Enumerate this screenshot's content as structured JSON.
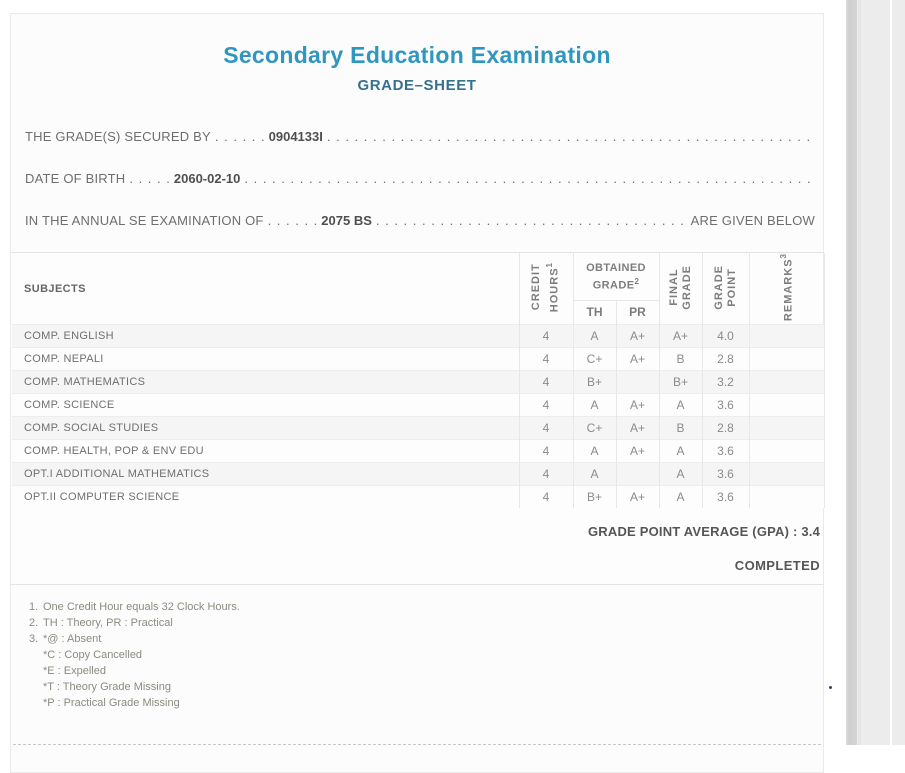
{
  "page": {
    "title": "Secondary Education Examination",
    "subtitle": "GRADE–SHEET"
  },
  "info": {
    "line1": {
      "label": "THE GRADE(S) SECURED BY",
      "value": "0904133I"
    },
    "line2": {
      "label": "DATE OF BIRTH",
      "value": "2060-02-10"
    },
    "line3": {
      "label": "IN THE ANNUAL SE EXAMINATION OF",
      "value": "2075 BS",
      "suffix": "ARE GIVEN BELOW"
    }
  },
  "table": {
    "headers": {
      "subjects": "SUBJECTS",
      "credit_l1": "CREDIT",
      "credit_l2": "HOURS",
      "credit_sup": "1",
      "obtained": "OBTAINED GRADE",
      "obtained_sup": "2",
      "th": "TH",
      "pr": "PR",
      "final_l1": "FINAL",
      "final_l2": "GRADE",
      "gp_l1": "GRADE",
      "gp_l2": "POINT",
      "remarks": "REMARKS",
      "remarks_sup": "3"
    },
    "rows": [
      {
        "subject": "COMP. ENGLISH",
        "credit": "4",
        "th": "A",
        "pr": "A+",
        "final": "A+",
        "gp": "4.0",
        "remarks": ""
      },
      {
        "subject": "COMP. NEPALI",
        "credit": "4",
        "th": "C+",
        "pr": "A+",
        "final": "B",
        "gp": "2.8",
        "remarks": ""
      },
      {
        "subject": "COMP. MATHEMATICS",
        "credit": "4",
        "th": "B+",
        "pr": "",
        "final": "B+",
        "gp": "3.2",
        "remarks": ""
      },
      {
        "subject": "COMP. SCIENCE",
        "credit": "4",
        "th": "A",
        "pr": "A+",
        "final": "A",
        "gp": "3.6",
        "remarks": ""
      },
      {
        "subject": "COMP. SOCIAL STUDIES",
        "credit": "4",
        "th": "C+",
        "pr": "A+",
        "final": "B",
        "gp": "2.8",
        "remarks": ""
      },
      {
        "subject": "COMP. HEALTH, POP & ENV EDU",
        "credit": "4",
        "th": "A",
        "pr": "A+",
        "final": "A",
        "gp": "3.6",
        "remarks": ""
      },
      {
        "subject": "OPT.I ADDITIONAL MATHEMATICS",
        "credit": "4",
        "th": "A",
        "pr": "",
        "final": "A",
        "gp": "3.6",
        "remarks": ""
      },
      {
        "subject": "OPT.II COMPUTER SCIENCE",
        "credit": "4",
        "th": "B+",
        "pr": "A+",
        "final": "A",
        "gp": "3.6",
        "remarks": ""
      }
    ]
  },
  "summary": {
    "gpa_label": "GRADE POINT AVERAGE (GPA) :",
    "gpa_value": "3.4",
    "status": "COMPLETED"
  },
  "footnotes": [
    {
      "num": "1.",
      "text": "One Credit Hour equals 32 Clock Hours."
    },
    {
      "num": "2.",
      "text": "TH : Theory, PR : Practical"
    },
    {
      "num": "3.",
      "text": "*@ : Absent"
    },
    {
      "num": "",
      "text": "*C : Copy Cancelled"
    },
    {
      "num": "",
      "text": "*E : Expelled"
    },
    {
      "num": "",
      "text": "*T : Theory Grade Missing"
    },
    {
      "num": "",
      "text": "*P : Practical Grade Missing"
    }
  ],
  "misc": {
    "dot_unit": ". "
  },
  "colors": {
    "title_blue": "#2f96bf",
    "subtitle_blue": "#35718f",
    "scrollbar_gray": "#d2d2d2",
    "panel_gray": "#ececec"
  }
}
